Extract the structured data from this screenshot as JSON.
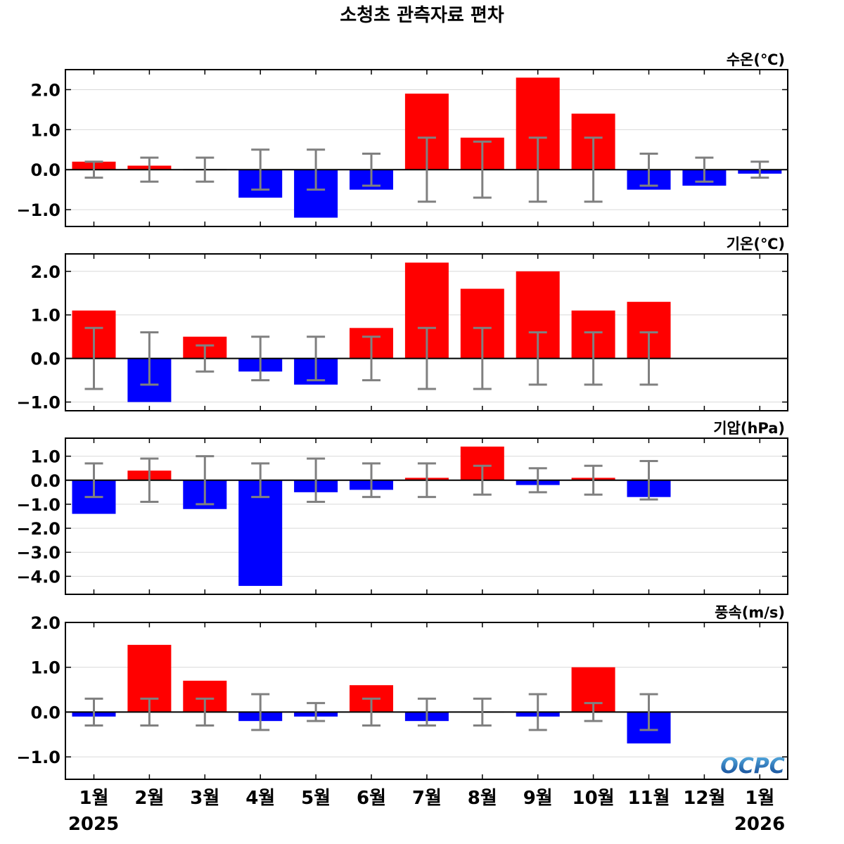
{
  "title": "소청초 관측자료 편차",
  "colors": {
    "positive": "#ff0000",
    "negative": "#0000ff",
    "error_bar": "#808080",
    "grid": "#d9d9d9",
    "zero_line": "#000000",
    "logo_top": "#5ab4e6",
    "logo_bottom": "#0a3c8c"
  },
  "logo": {
    "text": "OCPC"
  },
  "x_axis": {
    "months": [
      "1월",
      "2월",
      "3월",
      "4월",
      "5월",
      "6월",
      "7월",
      "8월",
      "9월",
      "10월",
      "11월",
      "12월",
      "1월"
    ],
    "start_year": "2025",
    "end_year": "2026"
  },
  "chart_data": [
    {
      "type": "bar",
      "label": "수온(℃)",
      "categories": [
        "2025-01",
        "2025-02",
        "2025-03",
        "2025-04",
        "2025-05",
        "2025-06",
        "2025-07",
        "2025-08",
        "2025-09",
        "2025-10",
        "2025-11",
        "2025-12",
        "2026-01"
      ],
      "values": [
        0.2,
        0.1,
        0.0,
        -0.7,
        -1.2,
        -0.5,
        1.9,
        0.8,
        2.3,
        1.4,
        -0.5,
        -0.4,
        -0.1
      ],
      "error_bars": [
        0.2,
        0.3,
        0.3,
        0.5,
        0.5,
        0.4,
        0.8,
        0.7,
        0.8,
        0.8,
        0.4,
        0.3,
        0.2
      ],
      "yticks": [
        "2.0",
        "1.0",
        "0.0",
        "−1.0"
      ],
      "ytick_values": [
        2.0,
        1.0,
        0.0,
        -1.0
      ],
      "ylim": [
        -1.42,
        2.5
      ],
      "grid": true
    },
    {
      "type": "bar",
      "label": "기온(℃)",
      "categories": [
        "2025-01",
        "2025-02",
        "2025-03",
        "2025-04",
        "2025-05",
        "2025-06",
        "2025-07",
        "2025-08",
        "2025-09",
        "2025-10",
        "2025-11",
        "2025-12",
        "2026-01"
      ],
      "values": [
        1.1,
        -1.0,
        0.5,
        -0.3,
        -0.6,
        0.7,
        2.2,
        1.6,
        2.0,
        1.1,
        1.3,
        null,
        null
      ],
      "error_bars": [
        0.7,
        0.6,
        0.3,
        0.5,
        0.5,
        0.5,
        0.7,
        0.7,
        0.6,
        0.6,
        0.6,
        null,
        null
      ],
      "yticks": [
        "2.0",
        "1.0",
        "0.0",
        "−1.0"
      ],
      "ytick_values": [
        2.0,
        1.0,
        0.0,
        -1.0
      ],
      "ylim": [
        -1.2,
        2.4
      ],
      "grid": true
    },
    {
      "type": "bar",
      "label": "기압(hPa)",
      "categories": [
        "2025-01",
        "2025-02",
        "2025-03",
        "2025-04",
        "2025-05",
        "2025-06",
        "2025-07",
        "2025-08",
        "2025-09",
        "2025-10",
        "2025-11",
        "2025-12",
        "2026-01"
      ],
      "values": [
        -1.4,
        0.4,
        -1.2,
        -4.4,
        -0.5,
        -0.4,
        0.1,
        1.4,
        -0.2,
        0.1,
        -0.7,
        null,
        null
      ],
      "error_bars": [
        0.7,
        0.9,
        1.0,
        0.7,
        0.9,
        0.7,
        0.7,
        0.6,
        0.5,
        0.6,
        0.8,
        null,
        null
      ],
      "yticks": [
        "1.0",
        "0.0",
        "−1.0",
        "−2.0",
        "−3.0",
        "−4.0"
      ],
      "ytick_values": [
        1.0,
        0.0,
        -1.0,
        -2.0,
        -3.0,
        -4.0
      ],
      "ylim": [
        -4.75,
        1.75
      ],
      "grid": true
    },
    {
      "type": "bar",
      "label": "풍속(m/s)",
      "categories": [
        "2025-01",
        "2025-02",
        "2025-03",
        "2025-04",
        "2025-05",
        "2025-06",
        "2025-07",
        "2025-08",
        "2025-09",
        "2025-10",
        "2025-11",
        "2025-12",
        "2026-01"
      ],
      "values": [
        -0.1,
        1.5,
        0.7,
        -0.2,
        -0.1,
        0.6,
        -0.2,
        0.0,
        -0.1,
        1.0,
        -0.7,
        null,
        null
      ],
      "error_bars": [
        0.3,
        0.3,
        0.3,
        0.4,
        0.2,
        0.3,
        0.3,
        0.3,
        0.4,
        0.2,
        0.4,
        null,
        null
      ],
      "yticks": [
        "2.0",
        "1.0",
        "0.0",
        "−1.0"
      ],
      "ytick_values": [
        2.0,
        1.0,
        0.0,
        -1.0
      ],
      "ylim": [
        -1.5,
        2.0
      ],
      "grid": true
    }
  ]
}
